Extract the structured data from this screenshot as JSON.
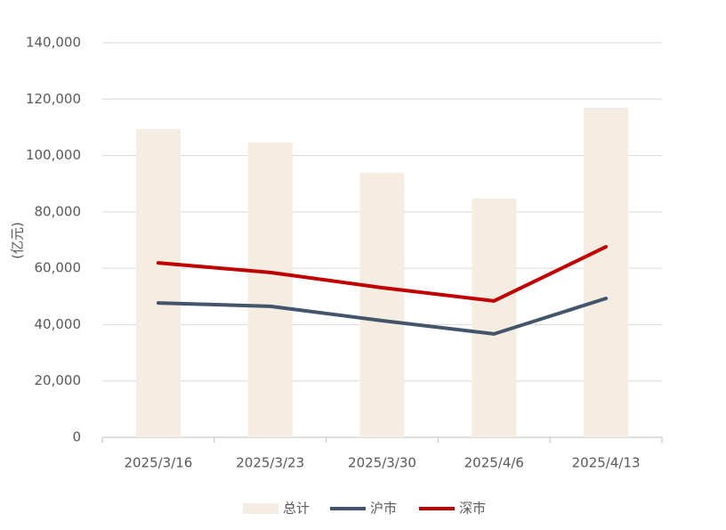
{
  "chart_data": {
    "type": "bar-line",
    "y_label": "(亿元)",
    "categories": [
      "2025/3/16",
      "2025/3/23",
      "2025/3/30",
      "2025/4/6",
      "2025/4/13"
    ],
    "series": [
      {
        "name": "总计",
        "type": "bar",
        "color": "#f5ece2",
        "values": [
          109400,
          104600,
          93900,
          84700,
          116900
        ]
      },
      {
        "name": "沪市",
        "type": "line",
        "color": "#44546a",
        "values": [
          47700,
          46500,
          41400,
          36700,
          49300
        ]
      },
      {
        "name": "深市",
        "type": "line",
        "color": "#c00000",
        "values": [
          61900,
          58500,
          53100,
          48400,
          67600
        ]
      }
    ],
    "ylim": [
      0,
      140000
    ],
    "yticks": [
      0,
      {
        "value": 20000,
        "label": "20,000"
      },
      {
        "value": 40000,
        "label": "40,000"
      },
      {
        "value": 60000,
        "label": "60,000"
      },
      {
        "value": 80000,
        "label": "80,000"
      },
      {
        "value": 100000,
        "label": "100,000"
      },
      {
        "value": 120000,
        "label": "120,000"
      },
      {
        "value": 140000,
        "label": "140,000"
      }
    ],
    "grid": true,
    "legend": "bottom"
  }
}
